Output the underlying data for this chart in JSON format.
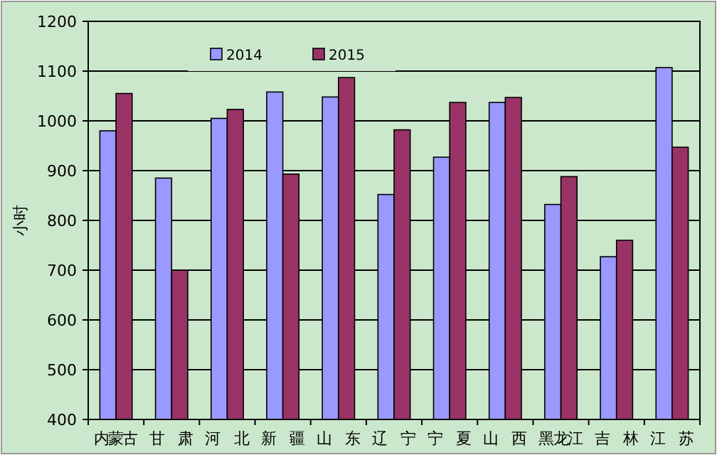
{
  "chart_data": {
    "type": "bar",
    "ylabel": "小时",
    "categories": [
      "内蒙古",
      "甘肃",
      "河北",
      "新疆",
      "山东",
      "辽宁",
      "宁夏",
      "山西",
      "黑龙江",
      "吉林",
      "江苏"
    ],
    "series": [
      {
        "name": "2014",
        "color": "#9999ff",
        "values": [
          980,
          885,
          1005,
          1058,
          1048,
          852,
          927,
          1037,
          832,
          727,
          1107
        ]
      },
      {
        "name": "2015",
        "color": "#993366",
        "values": [
          1055,
          700,
          1023,
          893,
          1087,
          982,
          1037,
          1047,
          888,
          760,
          947
        ]
      }
    ],
    "ylim": [
      400,
      1200
    ],
    "yticks": [
      400,
      500,
      600,
      700,
      800,
      900,
      1000,
      1100,
      1200
    ],
    "grid": "y",
    "legend": "top"
  }
}
